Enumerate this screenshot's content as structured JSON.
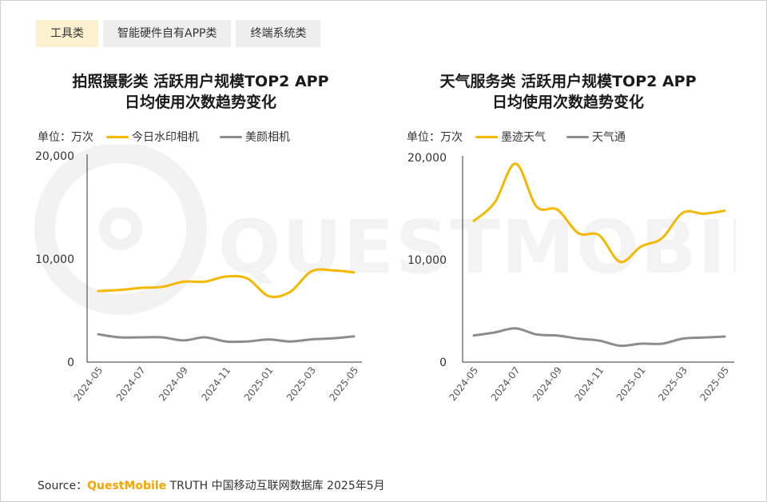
{
  "tabs": [
    {
      "label": "工具类",
      "active": true
    },
    {
      "label": "智能硬件自有APP类",
      "active": false
    },
    {
      "label": "终端系统类",
      "active": false
    }
  ],
  "watermark": {
    "text": "QUESTMOBILE"
  },
  "colors": {
    "yellow": "#f5b800",
    "gray": "#8c8c8c",
    "axis": "#333333",
    "tick": "#555555"
  },
  "charts": [
    {
      "title_line1": "拍照摄影类 活跃用户规模TOP2 APP",
      "title_line2": "日均使用次数趋势变化",
      "unit_label": "单位：万次",
      "legend": [
        "今日水印相机",
        "美颜相机"
      ]
    },
    {
      "title_line1": "天气服务类 活跃用户规模TOP2 APP",
      "title_line2": "日均使用次数趋势变化",
      "unit_label": "单位：万次",
      "legend": [
        "墨迹天气",
        "天气通"
      ]
    }
  ],
  "chart_data": [
    {
      "type": "line",
      "title": "拍照摄影类 活跃用户规模TOP2 APP 日均使用次数趋势变化",
      "ylabel": "万次",
      "ylim": [
        0,
        20000
      ],
      "yticks": [
        0,
        10000,
        20000
      ],
      "ytick_labels": [
        "0",
        "10,000",
        "20,000"
      ],
      "x": [
        "2024-05",
        "2024-06",
        "2024-07",
        "2024-08",
        "2024-09",
        "2024-10",
        "2024-11",
        "2024-12",
        "2025-01",
        "2025-02",
        "2025-03",
        "2025-04",
        "2025-05"
      ],
      "x_tick_labels": [
        "2024-05",
        "2024-07",
        "2024-09",
        "2024-11",
        "2025-01",
        "2025-03",
        "2025-05"
      ],
      "series": [
        {
          "name": "今日水印相机",
          "color": "#f5b800",
          "values": [
            6900,
            7000,
            7200,
            7300,
            7800,
            7800,
            8300,
            8100,
            6400,
            6800,
            8800,
            8900,
            8700
          ]
        },
        {
          "name": "美颜相机",
          "color": "#8c8c8c",
          "values": [
            2700,
            2400,
            2400,
            2400,
            2100,
            2400,
            2000,
            2000,
            2200,
            2000,
            2200,
            2300,
            2500
          ]
        }
      ]
    },
    {
      "type": "line",
      "title": "天气服务类 活跃用户规模TOP2 APP 日均使用次数趋势变化",
      "ylabel": "万次",
      "ylim": [
        0,
        20000
      ],
      "yticks": [
        0,
        10000,
        20000
      ],
      "ytick_labels": [
        "0",
        "10,000",
        "20,000"
      ],
      "x": [
        "2024-05",
        "2024-06",
        "2024-07",
        "2024-08",
        "2024-09",
        "2024-10",
        "2024-11",
        "2024-12",
        "2025-01",
        "2025-02",
        "2025-03",
        "2025-04",
        "2025-05"
      ],
      "x_tick_labels": [
        "2024-05",
        "2024-07",
        "2024-09",
        "2024-11",
        "2025-01",
        "2025-03",
        "2025-05"
      ],
      "series": [
        {
          "name": "墨迹天气",
          "color": "#f5b800",
          "values": [
            13800,
            15600,
            19400,
            15200,
            14900,
            12600,
            12400,
            9800,
            11300,
            12100,
            14600,
            14500,
            14800
          ]
        },
        {
          "name": "天气通",
          "color": "#8c8c8c",
          "values": [
            2600,
            2900,
            3300,
            2700,
            2600,
            2300,
            2100,
            1600,
            1800,
            1800,
            2300,
            2400,
            2500
          ]
        }
      ]
    }
  ],
  "source": {
    "prefix": "Source：",
    "brand": "QuestMobile",
    "suffix": " TRUTH 中国移动互联网数据库 2025年5月"
  }
}
